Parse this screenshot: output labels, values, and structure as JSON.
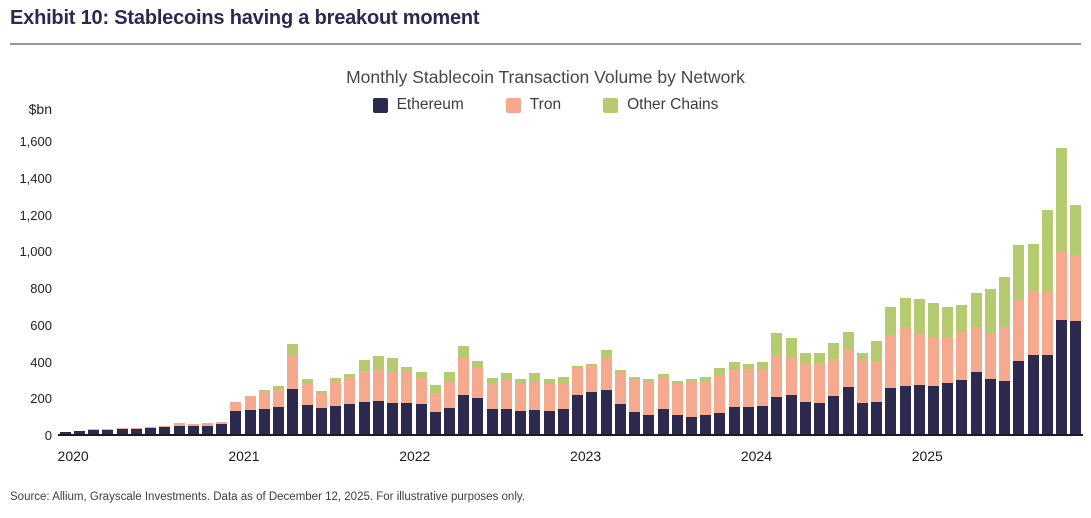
{
  "header": {
    "title": "Exhibit 10: Stablecoins having a breakout moment"
  },
  "chart": {
    "title": "Monthly Stablecoin Transaction Volume by Network",
    "unit_label": "$bn"
  },
  "chart_data": {
    "type": "bar",
    "stacked": true,
    "title": "Monthly Stablecoin Transaction Volume by Network",
    "xlabel": "",
    "ylabel": "$bn",
    "ylim": [
      0,
      1600
    ],
    "grid": false,
    "legend_position": "top-center",
    "y_ticks": [
      0,
      200,
      400,
      600,
      800,
      1000,
      1200,
      1400,
      1600
    ],
    "y_tick_labels": [
      "0",
      "200",
      "400",
      "600",
      "800",
      "1,000",
      "1,200",
      "1,400",
      "1,600"
    ],
    "x_year_labels": [
      "2020",
      "2021",
      "2022",
      "2023",
      "2024",
      "2025"
    ],
    "x": [
      "Jan 2020",
      "Feb 2020",
      "Mar 2020",
      "Apr 2020",
      "May 2020",
      "Jun 2020",
      "Jul 2020",
      "Aug 2020",
      "Sep 2020",
      "Oct 2020",
      "Nov 2020",
      "Dec 2020",
      "Jan 2021",
      "Feb 2021",
      "Mar 2021",
      "Apr 2021",
      "May 2021",
      "Jun 2021",
      "Jul 2021",
      "Aug 2021",
      "Sep 2021",
      "Oct 2021",
      "Nov 2021",
      "Dec 2021",
      "Jan 2022",
      "Feb 2022",
      "Mar 2022",
      "Apr 2022",
      "May 2022",
      "Jun 2022",
      "Jul 2022",
      "Aug 2022",
      "Sep 2022",
      "Oct 2022",
      "Nov 2022",
      "Dec 2022",
      "Jan 2023",
      "Feb 2023",
      "Mar 2023",
      "Apr 2023",
      "May 2023",
      "Jun 2023",
      "Jul 2023",
      "Aug 2023",
      "Sep 2023",
      "Oct 2023",
      "Nov 2023",
      "Dec 2023",
      "Jan 2024",
      "Feb 2024",
      "Mar 2024",
      "Apr 2024",
      "May 2024",
      "Jun 2024",
      "Jul 2024",
      "Aug 2024",
      "Sep 2024",
      "Oct 2024",
      "Nov 2024",
      "Dec 2024",
      "Jan 2025",
      "Feb 2025",
      "Mar 2025",
      "Apr 2025",
      "May 2025",
      "Jun 2025",
      "Jul 2025",
      "Aug 2025",
      "Sep 2025",
      "Oct 2025",
      "Nov 2025",
      "Dec 2025"
    ],
    "series": [
      {
        "name": "Ethereum",
        "color": "#2c2b4f",
        "values": [
          12,
          16,
          24,
          23,
          27,
          27,
          32,
          38,
          45,
          42,
          46,
          52,
          123,
          128,
          138,
          147,
          245,
          160,
          140,
          150,
          165,
          175,
          180,
          170,
          170,
          165,
          120,
          140,
          215,
          195,
          135,
          135,
          125,
          130,
          125,
          135,
          210,
          230,
          240,
          165,
          120,
          105,
          138,
          105,
          95,
          105,
          115,
          145,
          145,
          150,
          200,
          215,
          175,
          170,
          205,
          255,
          170,
          175,
          250,
          260,
          265,
          260,
          280,
          295,
          340,
          300,
          290,
          400,
          430,
          430,
          620,
          615
        ]
      },
      {
        "name": "Tron",
        "color": "#f5a98e",
        "values": [
          1,
          2,
          3,
          3,
          4,
          4,
          5,
          6,
          14,
          10,
          12,
          14,
          50,
          77,
          95,
          100,
          180,
          120,
          80,
          138,
          147,
          170,
          170,
          170,
          165,
          140,
          105,
          150,
          200,
          170,
          140,
          160,
          145,
          160,
          145,
          145,
          150,
          140,
          180,
          170,
          175,
          180,
          175,
          165,
          190,
          185,
          205,
          210,
          210,
          200,
          230,
          200,
          205,
          215,
          205,
          205,
          233,
          215,
          290,
          320,
          280,
          265,
          240,
          260,
          240,
          250,
          290,
          330,
          350,
          345,
          370,
          360
        ]
      },
      {
        "name": "Other Chains",
        "color": "#b6ca70",
        "values": [
          0,
          0,
          0,
          0,
          0,
          0,
          0,
          0,
          1,
          1,
          1,
          1,
          2,
          4,
          9,
          15,
          65,
          22,
          13,
          15,
          13,
          60,
          75,
          72,
          30,
          30,
          40,
          45,
          65,
          35,
          30,
          35,
          30,
          40,
          30,
          30,
          10,
          12,
          40,
          15,
          18,
          15,
          15,
          17,
          13,
          22,
          37,
          38,
          28,
          40,
          120,
          110,
          60,
          55,
          88,
          95,
          40,
          118,
          150,
          160,
          190,
          190,
          170,
          145,
          190,
          240,
          275,
          300,
          255,
          445,
          565,
          270
        ]
      }
    ]
  },
  "footer": {
    "source": "Source: Allium, Grayscale Investments. Data as of December 12, 2025. For illustrative purposes only."
  }
}
